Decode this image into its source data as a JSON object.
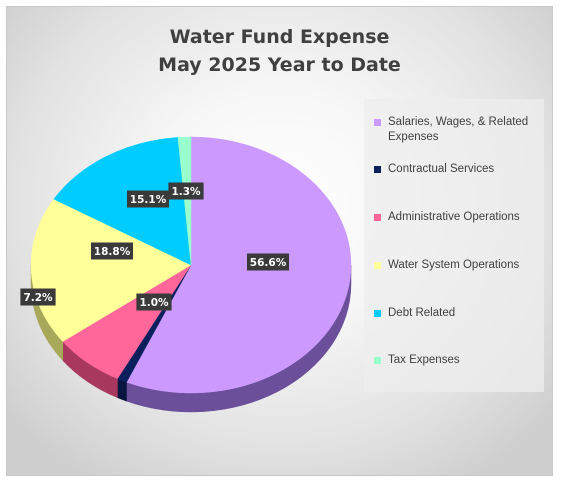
{
  "chart_data": {
    "type": "pie",
    "title": "Water Fund Expense",
    "subtitle": "May 2025 Year to Date",
    "legend_position": "right",
    "slices": [
      {
        "label": "Salaries, Wages, & Related Expenses",
        "value": 56.6,
        "display": "56.6%",
        "color": "#cc99ff",
        "side": "#6b4f9a"
      },
      {
        "label": "Contractual Services",
        "value": 1.0,
        "display": "1.0%",
        "color": "#0b1f5c",
        "side": "#081540"
      },
      {
        "label": "Administrative Operations",
        "value": 7.2,
        "display": "7.2%",
        "color": "#ff6699",
        "side": "#a8385e"
      },
      {
        "label": "Water System Operations",
        "value": 18.8,
        "display": "18.8%",
        "color": "#ffff99",
        "side": "#a8a85a"
      },
      {
        "label": "Debt Related",
        "value": 15.1,
        "display": "15.1%",
        "color": "#00ccff",
        "side": "#0080a6"
      },
      {
        "label": "Tax Expenses",
        "value": 1.3,
        "display": "1.3%",
        "color": "#99ffcc",
        "side": "#5aa882"
      }
    ]
  }
}
